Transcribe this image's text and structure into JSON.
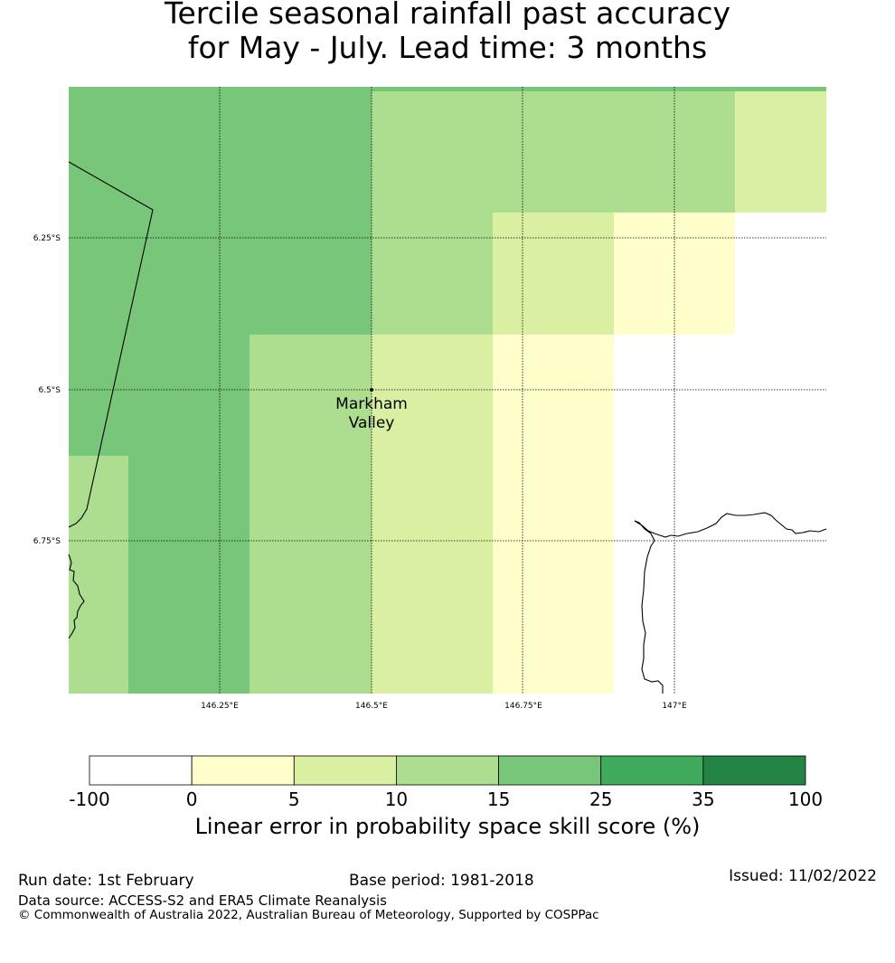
{
  "title_line1": "Tercile seasonal rainfall past accuracy",
  "title_line2": "for May - July. Lead time: 3 months",
  "map": {
    "lat_labels": [
      "6.25°S",
      "6.5°S",
      "6.75°S"
    ],
    "lon_labels": [
      "146.25°E",
      "146.5°E",
      "146.75°E",
      "147°E"
    ],
    "place_line1": "Markham",
    "place_line2": "Valley"
  },
  "legend": {
    "ticks": [
      "-100",
      "0",
      "5",
      "10",
      "15",
      "25",
      "35",
      "100"
    ],
    "colors": [
      "#ffffff",
      "#ffffcc",
      "#d9f0a3",
      "#addd8e",
      "#78c679",
      "#41ab5d",
      "#238443"
    ],
    "label": "Linear error in probability space skill score (%)"
  },
  "footer": {
    "run_date": "Run date: 1st February",
    "base_period": "Base period: 1981-2018",
    "issued": "Issued: 11/02/2022",
    "source": "Data source: ACCESS-S2 and ERA5 Climate Reanalysis",
    "copyright": "© Commonwealth of Australia 2022, Australian Bureau of Meteorology, Supported by COSPPac"
  }
}
